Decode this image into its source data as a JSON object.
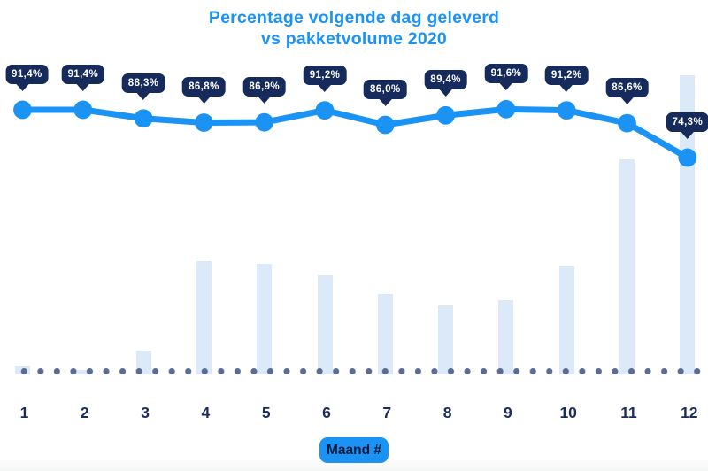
{
  "title": {
    "line1": "Percentage volgende dag geleverd",
    "line2": "vs pakketvolume 2020"
  },
  "x_axis": {
    "label": "Maand #",
    "months": [
      "1",
      "2",
      "3",
      "4",
      "5",
      "6",
      "7",
      "8",
      "9",
      "10",
      "11",
      "12"
    ]
  },
  "chart_data": {
    "type": "combo line+bar",
    "title": "Percentage volgende dag geleverd vs pakketvolume 2020",
    "xlabel": "Maand #",
    "categories": [
      "1",
      "2",
      "3",
      "4",
      "5",
      "6",
      "7",
      "8",
      "9",
      "10",
      "11",
      "12"
    ],
    "series": [
      {
        "name": "Percentage volgende dag geleverd",
        "type": "line",
        "unit": "%",
        "values": [
          91.4,
          91.4,
          88.3,
          86.8,
          86.9,
          91.2,
          86.0,
          89.4,
          91.6,
          91.2,
          86.6,
          74.3
        ],
        "labels": [
          "91,4%",
          "91,4%",
          "88,3%",
          "86,8%",
          "86,9%",
          "91,2%",
          "86,0%",
          "89,4%",
          "91,6%",
          "91,2%",
          "86,6%",
          "74,3%"
        ]
      },
      {
        "name": "Pakketvolume 2020",
        "type": "bar",
        "unit": "relative volume, % of max (no value axis shown)",
        "values": [
          3,
          1.5,
          8,
          38,
          37,
          33,
          27,
          23,
          25,
          36,
          72,
          100
        ]
      }
    ],
    "legend": "none",
    "grid": false,
    "baseline_style": "dotted row at x-axis"
  },
  "colors": {
    "accent": "#1B93F4",
    "tooltip_bg": "#162A5C",
    "tooltip_text": "#FFFFFF",
    "bar": "#DBE9F8",
    "baseline_dot": "#5A6C92",
    "tick_label": "#1A2D5E",
    "pill_text": "#0B1B3C",
    "background": "#FFFFFF"
  }
}
